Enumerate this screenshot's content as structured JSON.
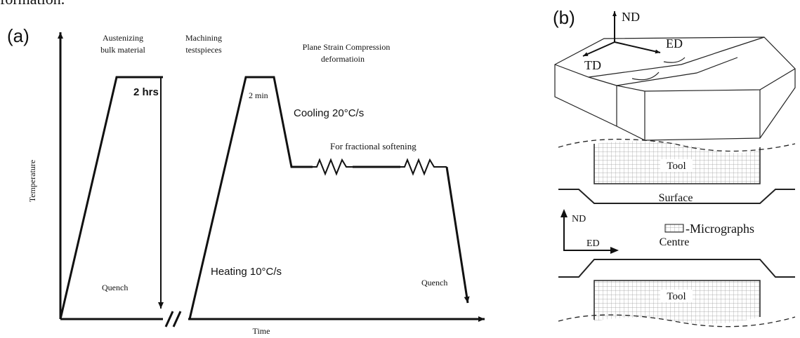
{
  "header_fragment": "formation.",
  "panel_a": {
    "label": "(a)",
    "y_axis_label": "Temperature",
    "x_axis_label": "Time",
    "stage1_title_line1": "Austenizing",
    "stage1_title_line2": "bulk material",
    "stage2_title_line1": "Machining",
    "stage2_title_line2": "testspieces",
    "stage3_title_line1": "Plane Strain Compression",
    "stage3_title_line2": "deformatioin",
    "hold1": "2 hrs",
    "hold2": "2 min",
    "cooling": "Cooling 20°C/s",
    "softening": "For fractional softening",
    "heating": "Heating 10°C/s",
    "quench1": "Quench",
    "quench2": "Quench"
  },
  "panel_b": {
    "label": "(b)",
    "nd_top": "ND",
    "ed_top": "ED",
    "td_top": "TD",
    "tool_top": "Tool",
    "surface": "Surface",
    "nd_small": "ND",
    "ed_small": "ED",
    "centre": "Centre",
    "micrographs": "-Micrographs",
    "tool_bottom": "Tool"
  }
}
